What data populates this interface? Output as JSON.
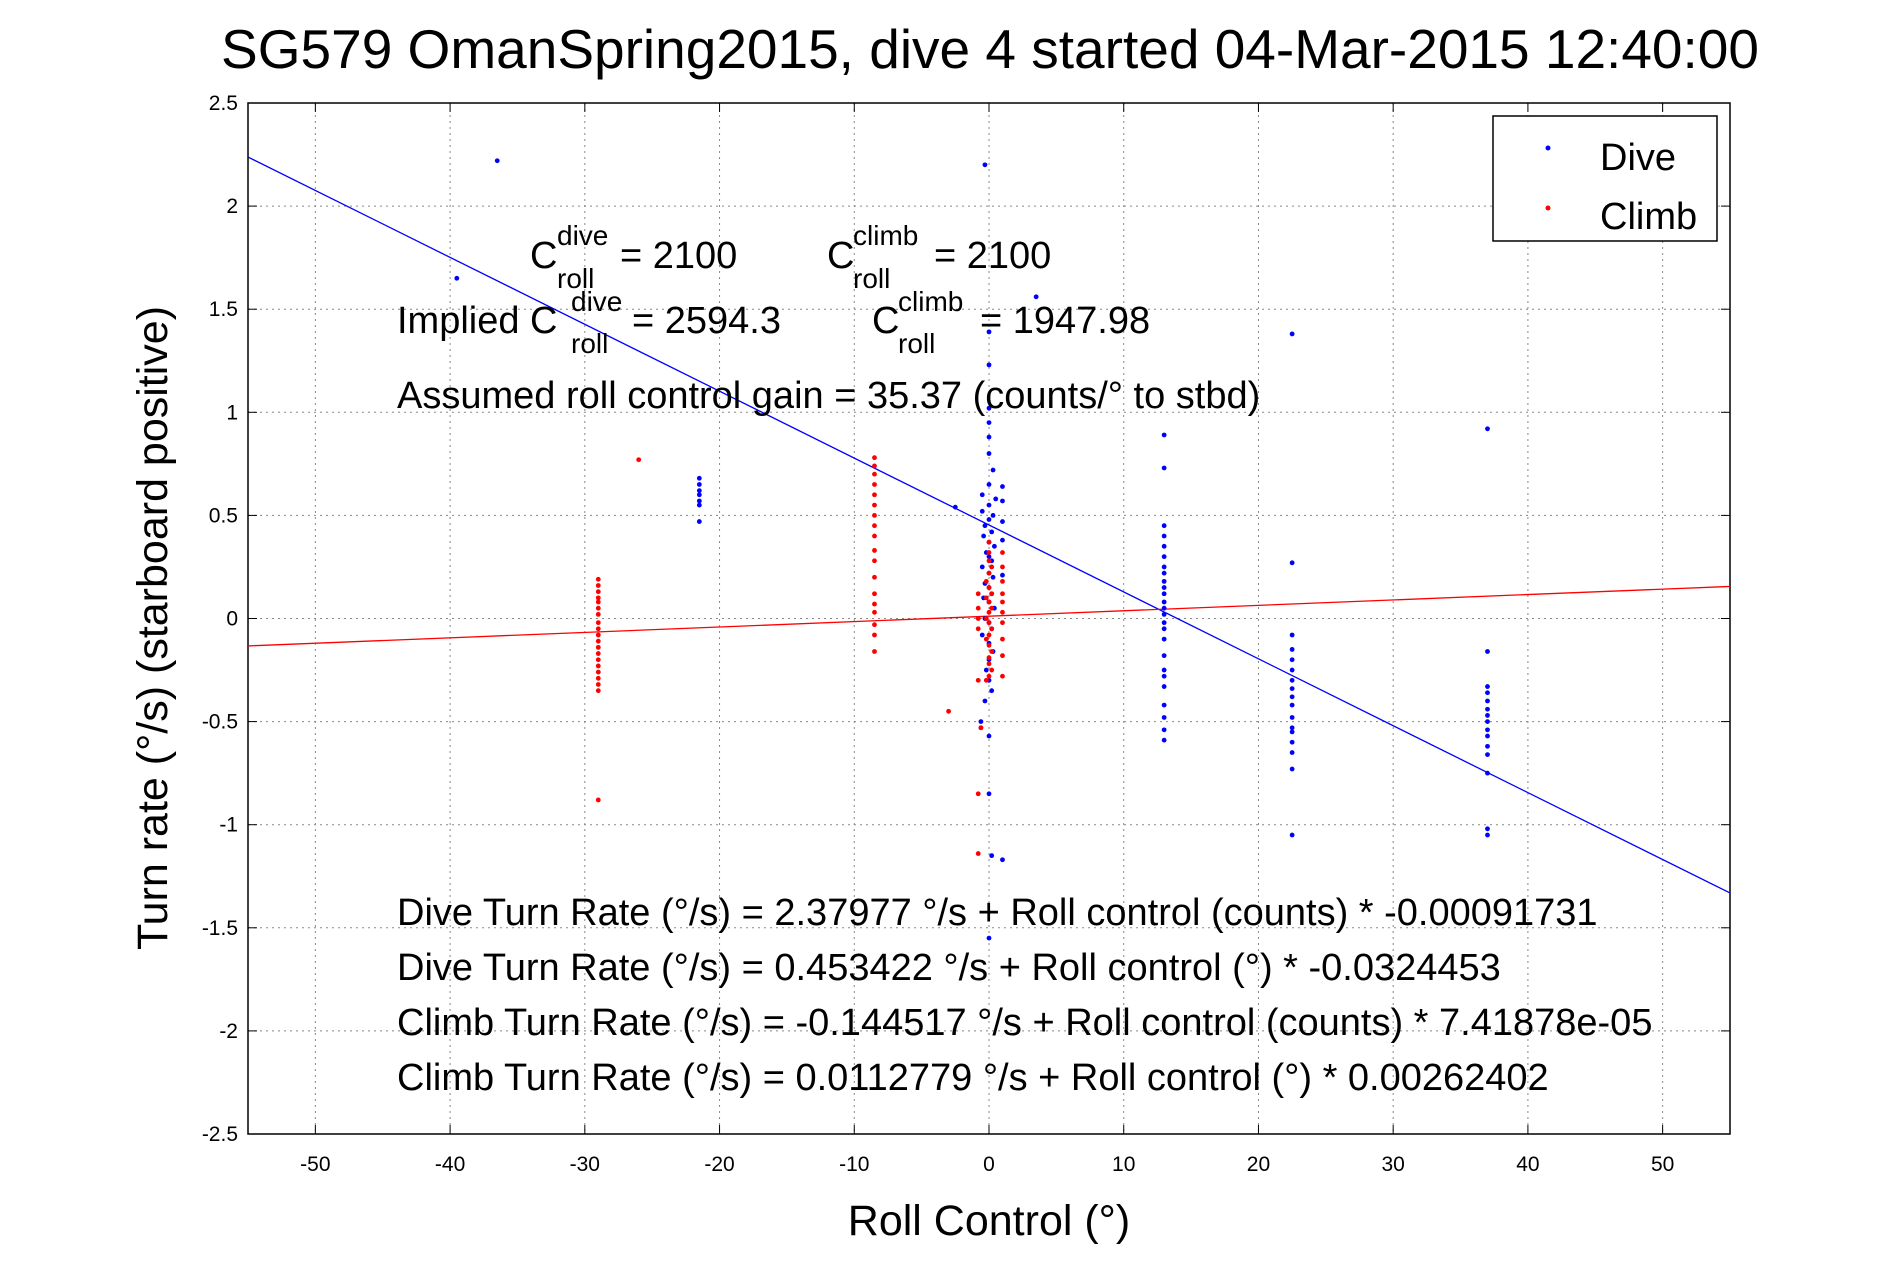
{
  "chart_data": {
    "type": "scatter",
    "title": "SG579 OmanSpring2015, dive 4 started 04-Mar-2015 12:40:00",
    "xlabel": "Roll Control (°)",
    "ylabel": "Turn rate (°/s)  (starboard positive)",
    "xlim": [
      -55,
      55
    ],
    "ylim": [
      -2.5,
      2.5
    ],
    "xticks": [
      -50,
      -40,
      -30,
      -20,
      -10,
      0,
      10,
      20,
      30,
      40,
      50
    ],
    "yticks": [
      2.5,
      2,
      1.5,
      1,
      0.5,
      0,
      -0.5,
      -1,
      -1.5,
      -2,
      -2.5
    ],
    "xtick_labels": [
      "-50",
      "-40",
      "-30",
      "-20",
      "-10",
      "0",
      "10",
      "20",
      "30",
      "40",
      "50"
    ],
    "ytick_labels": [
      "2.5",
      "2",
      "1.5",
      "1",
      "0.5",
      "0",
      "-0.5",
      "-1",
      "-1.5",
      "-2",
      "-2.5"
    ],
    "grid": true,
    "legend": "top-right",
    "series": [
      {
        "name": "Dive",
        "color": "#0000ff",
        "points": [
          [
            -36.5,
            2.22
          ],
          [
            -39.5,
            1.65
          ],
          [
            -21.5,
            0.68
          ],
          [
            -21.5,
            0.65
          ],
          [
            -21.5,
            0.62
          ],
          [
            -21.5,
            0.6
          ],
          [
            -21.5,
            0.57
          ],
          [
            -21.5,
            0.55
          ],
          [
            -21.5,
            0.47
          ],
          [
            -2.5,
            0.54
          ],
          [
            -0.3,
            2.2
          ],
          [
            0,
            1.39
          ],
          [
            0,
            1.23
          ],
          [
            0,
            1.02
          ],
          [
            0,
            0.95
          ],
          [
            0,
            0.88
          ],
          [
            0,
            0.8
          ],
          [
            0.3,
            0.72
          ],
          [
            0,
            0.65
          ],
          [
            -0.5,
            0.6
          ],
          [
            0.5,
            0.58
          ],
          [
            0,
            0.55
          ],
          [
            -0.5,
            0.52
          ],
          [
            0.3,
            0.5
          ],
          [
            0,
            0.48
          ],
          [
            -0.3,
            0.45
          ],
          [
            0.2,
            0.42
          ],
          [
            -0.4,
            0.4
          ],
          [
            0,
            0.37
          ],
          [
            0.4,
            0.35
          ],
          [
            -0.2,
            0.32
          ],
          [
            0,
            0.3
          ],
          [
            0.2,
            0.28
          ],
          [
            -0.5,
            0.25
          ],
          [
            0,
            0.22
          ],
          [
            0.3,
            0.2
          ],
          [
            -0.3,
            0.17
          ],
          [
            0,
            0.15
          ],
          [
            0.2,
            0.12
          ],
          [
            -0.4,
            0.1
          ],
          [
            0,
            0.08
          ],
          [
            0.4,
            0.05
          ],
          [
            -0.3,
            0.0
          ],
          [
            0,
            -0.02
          ],
          [
            0.2,
            -0.05
          ],
          [
            -0.5,
            -0.08
          ],
          [
            0,
            -0.12
          ],
          [
            0.3,
            -0.16
          ],
          [
            0,
            -0.2
          ],
          [
            -0.2,
            -0.25
          ],
          [
            0,
            -0.3
          ],
          [
            0.2,
            -0.35
          ],
          [
            -0.3,
            -0.4
          ],
          [
            -0.6,
            -0.5
          ],
          [
            -0.6,
            -0.53
          ],
          [
            0,
            -0.57
          ],
          [
            0,
            -0.85
          ],
          [
            0.2,
            -1.15
          ],
          [
            1.0,
            -1.17
          ],
          [
            0,
            -1.55
          ],
          [
            1.0,
            0.64
          ],
          [
            1.0,
            0.57
          ],
          [
            1.0,
            0.47
          ],
          [
            1.0,
            0.38
          ],
          [
            1.0,
            0.21
          ],
          [
            3.5,
            1.56
          ],
          [
            13,
            0.89
          ],
          [
            13,
            0.73
          ],
          [
            13,
            0.45
          ],
          [
            13,
            0.4
          ],
          [
            13,
            0.35
          ],
          [
            13,
            0.3
          ],
          [
            13,
            0.25
          ],
          [
            13,
            0.22
          ],
          [
            13,
            0.18
          ],
          [
            13,
            0.15
          ],
          [
            13,
            0.12
          ],
          [
            13,
            0.08
          ],
          [
            13,
            0.05
          ],
          [
            13,
            0.02
          ],
          [
            13,
            -0.02
          ],
          [
            13,
            -0.05
          ],
          [
            13,
            -0.1
          ],
          [
            13,
            -0.18
          ],
          [
            13,
            -0.25
          ],
          [
            13,
            -0.28
          ],
          [
            13,
            -0.33
          ],
          [
            13,
            -0.42
          ],
          [
            13,
            -0.48
          ],
          [
            13,
            -0.54
          ],
          [
            13,
            -0.59
          ],
          [
            22.5,
            1.38
          ],
          [
            22.5,
            0.27
          ],
          [
            22.5,
            -0.08
          ],
          [
            22.5,
            -0.15
          ],
          [
            22.5,
            -0.2
          ],
          [
            22.5,
            -0.25
          ],
          [
            22.5,
            -0.3
          ],
          [
            22.5,
            -0.34
          ],
          [
            22.5,
            -0.38
          ],
          [
            22.5,
            -0.42
          ],
          [
            22.5,
            -0.48
          ],
          [
            22.5,
            -0.53
          ],
          [
            22.5,
            -0.55
          ],
          [
            22.5,
            -0.6
          ],
          [
            22.5,
            -0.65
          ],
          [
            22.5,
            -0.73
          ],
          [
            22.5,
            -1.05
          ],
          [
            37,
            0.92
          ],
          [
            37,
            -0.16
          ],
          [
            37,
            -0.33
          ],
          [
            37,
            -0.36
          ],
          [
            37,
            -0.4
          ],
          [
            37,
            -0.44
          ],
          [
            37,
            -0.47
          ],
          [
            37,
            -0.5
          ],
          [
            37,
            -0.54
          ],
          [
            37,
            -0.57
          ],
          [
            37,
            -0.62
          ],
          [
            37,
            -0.66
          ],
          [
            37,
            -0.75
          ],
          [
            37,
            -1.02
          ],
          [
            37,
            -1.05
          ]
        ],
        "fit_line": {
          "intercept": 0.453422,
          "slope": -0.0324453
        }
      },
      {
        "name": "Climb",
        "color": "#ff0000",
        "points": [
          [
            -26,
            0.77
          ],
          [
            -29,
            -0.88
          ],
          [
            -29,
            0.19
          ],
          [
            -29,
            0.16
          ],
          [
            -29,
            0.13
          ],
          [
            -29,
            0.1
          ],
          [
            -29,
            0.08
          ],
          [
            -29,
            0.05
          ],
          [
            -29,
            0.02
          ],
          [
            -29,
            -0.02
          ],
          [
            -29,
            -0.05
          ],
          [
            -29,
            -0.08
          ],
          [
            -29,
            -0.11
          ],
          [
            -29,
            -0.14
          ],
          [
            -29,
            -0.17
          ],
          [
            -29,
            -0.2
          ],
          [
            -29,
            -0.23
          ],
          [
            -29,
            -0.26
          ],
          [
            -29,
            -0.29
          ],
          [
            -29,
            -0.32
          ],
          [
            -29,
            -0.35
          ],
          [
            -8.5,
            0.78
          ],
          [
            -8.5,
            0.74
          ],
          [
            -8.5,
            0.7
          ],
          [
            -8.5,
            0.65
          ],
          [
            -8.5,
            0.6
          ],
          [
            -8.5,
            0.55
          ],
          [
            -8.5,
            0.5
          ],
          [
            -8.5,
            0.45
          ],
          [
            -8.5,
            0.4
          ],
          [
            -8.5,
            0.33
          ],
          [
            -8.5,
            0.28
          ],
          [
            -8.5,
            0.2
          ],
          [
            -8.5,
            0.12
          ],
          [
            -8.5,
            0.07
          ],
          [
            -8.5,
            0.03
          ],
          [
            -8.5,
            -0.03
          ],
          [
            -8.5,
            -0.08
          ],
          [
            -8.5,
            -0.16
          ],
          [
            -3,
            -0.45
          ],
          [
            -0.8,
            0.12
          ],
          [
            -0.8,
            0.05
          ],
          [
            -0.8,
            0.0
          ],
          [
            -0.8,
            -0.05
          ],
          [
            -0.8,
            -0.3
          ],
          [
            -0.6,
            -0.53
          ],
          [
            -0.8,
            -0.85
          ],
          [
            -0.8,
            -1.14
          ],
          [
            0,
            0.37
          ],
          [
            0,
            0.32
          ],
          [
            0,
            0.28
          ],
          [
            0.2,
            0.25
          ],
          [
            0,
            0.22
          ],
          [
            -0.2,
            0.18
          ],
          [
            0,
            0.15
          ],
          [
            0.2,
            0.12
          ],
          [
            -0.2,
            0.1
          ],
          [
            0,
            0.08
          ],
          [
            0.2,
            0.05
          ],
          [
            0,
            0.03
          ],
          [
            -0.2,
            0.0
          ],
          [
            0,
            -0.02
          ],
          [
            0.2,
            -0.05
          ],
          [
            0,
            -0.08
          ],
          [
            -0.2,
            -0.1
          ],
          [
            0,
            -0.13
          ],
          [
            0.2,
            -0.16
          ],
          [
            0,
            -0.19
          ],
          [
            0,
            -0.22
          ],
          [
            0.2,
            -0.25
          ],
          [
            0,
            -0.28
          ],
          [
            -0.2,
            -0.3
          ],
          [
            1.0,
            0.32
          ],
          [
            1.0,
            0.25
          ],
          [
            1.0,
            0.18
          ],
          [
            1.0,
            0.12
          ],
          [
            1.0,
            0.08
          ],
          [
            1.0,
            0.03
          ],
          [
            1.0,
            -0.02
          ],
          [
            1.0,
            -0.1
          ],
          [
            1.0,
            -0.18
          ],
          [
            1.0,
            -0.28
          ]
        ],
        "fit_line": {
          "intercept": 0.0112779,
          "slope": 0.00262402
        }
      }
    ]
  },
  "annotations": {
    "c_main": "C",
    "c_roll_sub": "roll",
    "dive_sup": "dive",
    "climb_sup": "climb",
    "c_dive_value": " = 2100",
    "c_climb_value": " = 2100",
    "implied_prefix": "Implied C",
    "implied_dive_value": " = 2594.3",
    "implied_climb_value": " = 1947.98",
    "gain": "Assumed roll control gain = 35.37 (counts/° to stbd)",
    "eq1": "Dive Turn Rate (°/s) = 2.37977 °/s + Roll control (counts) * -0.00091731",
    "eq2": "Dive Turn Rate (°/s) = 0.453422 °/s + Roll control (°) * -0.0324453",
    "eq3": "Climb Turn Rate (°/s) = -0.144517 °/s + Roll control (counts) * 7.41878e-05",
    "eq4": "Climb Turn Rate (°/s) = 0.0112779 °/s + Roll control (°) * 0.00262402"
  }
}
